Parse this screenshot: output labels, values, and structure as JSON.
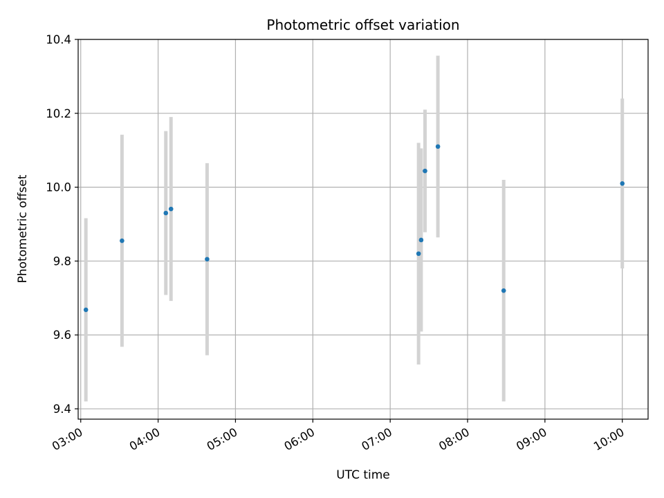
{
  "chart_data": {
    "type": "scatter",
    "title": "Photometric offset variation",
    "xlabel": "UTC time",
    "ylabel": "Photometric offset",
    "x_type": "time",
    "xlim": [
      "02:58",
      "10:20"
    ],
    "ylim": [
      9.372,
      10.4
    ],
    "x_ticks": [
      "03:00",
      "04:00",
      "05:00",
      "06:00",
      "07:00",
      "08:00",
      "09:00",
      "10:00"
    ],
    "y_ticks": [
      9.4,
      9.6,
      9.8,
      10.0,
      10.2,
      10.4
    ],
    "y_tick_labels": [
      "9.4",
      "9.6",
      "9.8",
      "10.0",
      "10.2",
      "10.4"
    ],
    "grid": true,
    "errorbar_color": "#d3d3d3",
    "point_color": "#1f77b4",
    "points": [
      {
        "x": "03:04",
        "y": 9.668,
        "err": 0.248
      },
      {
        "x": "03:32",
        "y": 9.855,
        "err": 0.287
      },
      {
        "x": "04:06",
        "y": 9.93,
        "err": 0.222
      },
      {
        "x": "04:10",
        "y": 9.941,
        "err": 0.249
      },
      {
        "x": "04:38",
        "y": 9.805,
        "err": 0.26
      },
      {
        "x": "07:22",
        "y": 9.82,
        "err": 0.3
      },
      {
        "x": "07:24",
        "y": 9.857,
        "err": 0.248
      },
      {
        "x": "07:27",
        "y": 10.044,
        "err": 0.166
      },
      {
        "x": "07:37",
        "y": 10.11,
        "err": 0.246
      },
      {
        "x": "08:28",
        "y": 9.72,
        "err": 0.3
      },
      {
        "x": "10:00",
        "y": 10.01,
        "err": 0.23
      }
    ]
  }
}
